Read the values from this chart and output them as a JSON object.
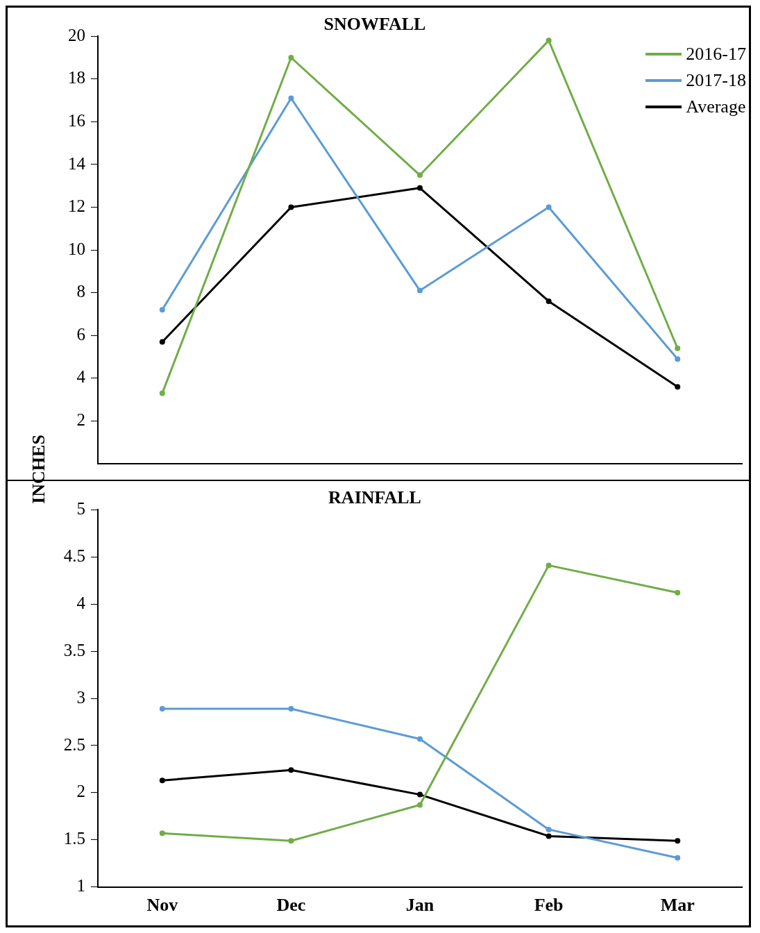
{
  "chart_data": [
    {
      "type": "line",
      "title": "SNOWFALL",
      "ylabel": "INCHES",
      "categories": [
        null,
        null,
        null,
        null,
        null
      ],
      "ylim": [
        0,
        20
      ],
      "yticks": [
        2,
        4,
        6,
        8,
        10,
        12,
        14,
        16,
        18,
        20
      ],
      "tick_labels": "y",
      "grid": false,
      "legend": "top right",
      "marker": "circle",
      "line_style": "solid",
      "series": [
        {
          "name": "2016-17",
          "color": "#70ad47",
          "values": [
            3.3,
            19.0,
            13.5,
            19.8,
            5.4
          ]
        },
        {
          "name": "2017-18",
          "color": "#5b9bd5",
          "values": [
            7.2,
            17.1,
            8.1,
            12.0,
            4.9
          ]
        },
        {
          "name": "Average",
          "color": "#000000",
          "values": [
            5.7,
            12.0,
            12.9,
            7.6,
            3.6
          ]
        }
      ]
    },
    {
      "type": "line",
      "title": "RAINFALL",
      "categories": [
        "Nov",
        "Dec",
        "Jan",
        "Feb",
        "Mar"
      ],
      "ylim": [
        1,
        5
      ],
      "yticks": [
        1,
        1.5,
        2,
        2.5,
        3,
        3.5,
        4,
        4.5,
        5
      ],
      "grid": false,
      "legend": false,
      "marker": "circle",
      "line_style": "solid",
      "series": [
        {
          "color": "#70ad47",
          "values": [
            1.57,
            1.49,
            1.87,
            4.41,
            4.12
          ]
        },
        {
          "color": "#5b9bd5",
          "values": [
            2.89,
            2.89,
            2.57,
            1.61,
            1.31
          ]
        },
        {
          "color": "#000000",
          "values": [
            2.13,
            2.24,
            1.98,
            1.54,
            1.49
          ]
        }
      ]
    }
  ]
}
